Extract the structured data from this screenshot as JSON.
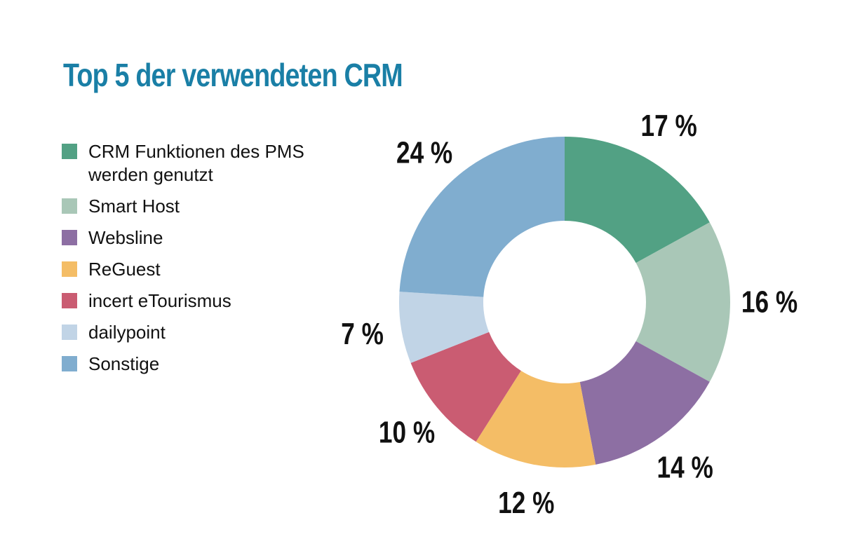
{
  "title": "Top 5 der verwendeten CRM",
  "colors": {
    "title": "#1a7fa6",
    "series": [
      "#52a184",
      "#a9c7b7",
      "#8d6fa3",
      "#f4bd66",
      "#ca5c72",
      "#c1d4e6",
      "#80adcf"
    ]
  },
  "chart_data": {
    "type": "pie",
    "donut": true,
    "title": "Top 5 der verwendeten CRM",
    "legend": "left",
    "categories": [
      "CRM Funktionen des PMS werden genutzt",
      "Smart Host",
      "Websline",
      "ReGuest",
      "incert eTourismus",
      "dailypoint",
      "Sonstige"
    ],
    "values": [
      17,
      16,
      14,
      12,
      10,
      7,
      24
    ],
    "labels": [
      "17 %",
      "16 %",
      "14 %",
      "12 %",
      "10 %",
      "7 %",
      "24 %"
    ]
  }
}
